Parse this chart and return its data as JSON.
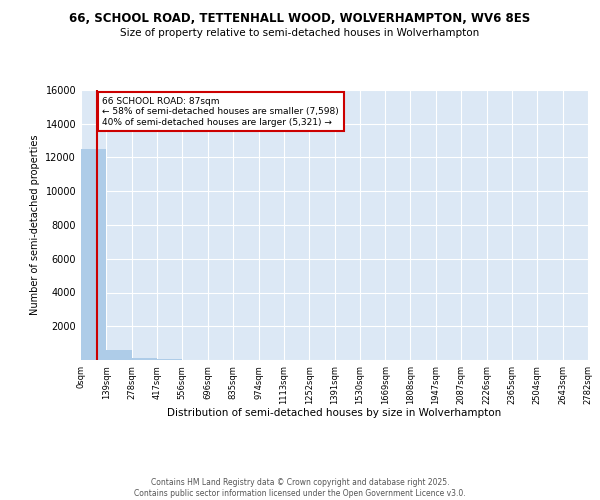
{
  "title1": "66, SCHOOL ROAD, TETTENHALL WOOD, WOLVERHAMPTON, WV6 8ES",
  "title2": "Size of property relative to semi-detached houses in Wolverhampton",
  "xlabel": "Distribution of semi-detached houses by size in Wolverhampton",
  "ylabel": "Number of semi-detached properties",
  "property_label": "66 SCHOOL ROAD: 87sqm",
  "annotation_line1": "← 58% of semi-detached houses are smaller (7,598)",
  "annotation_line2": "40% of semi-detached houses are larger (5,321) →",
  "bin_edges": [
    0,
    139,
    278,
    417,
    556,
    696,
    835,
    974,
    1113,
    1252,
    1391,
    1530,
    1669,
    1808,
    1947,
    2087,
    2226,
    2365,
    2504,
    2643,
    2782
  ],
  "bin_labels": [
    "0sqm",
    "139sqm",
    "278sqm",
    "417sqm",
    "556sqm",
    "696sqm",
    "835sqm",
    "974sqm",
    "1113sqm",
    "1252sqm",
    "1391sqm",
    "1530sqm",
    "1669sqm",
    "1808sqm",
    "1947sqm",
    "2087sqm",
    "2226sqm",
    "2365sqm",
    "2504sqm",
    "2643sqm",
    "2782sqm"
  ],
  "bar_heights": [
    12500,
    600,
    100,
    40,
    20,
    10,
    6,
    4,
    2,
    1,
    1,
    1,
    0,
    0,
    0,
    0,
    0,
    0,
    0,
    0
  ],
  "bar_color": "#aecce8",
  "vline_color": "#cc0000",
  "vline_x": 87,
  "ylim": [
    0,
    16000
  ],
  "yticks": [
    0,
    2000,
    4000,
    6000,
    8000,
    10000,
    12000,
    14000,
    16000
  ],
  "bg_color": "#dce8f5",
  "grid_color": "#ffffff",
  "footer1": "Contains HM Land Registry data © Crown copyright and database right 2025.",
  "footer2": "Contains public sector information licensed under the Open Government Licence v3.0."
}
